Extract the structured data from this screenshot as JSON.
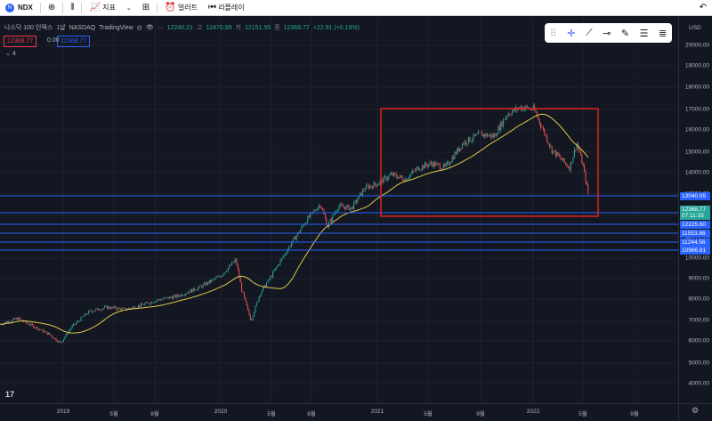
{
  "toolbar": {
    "symbol": "NDX",
    "indicators_label": "지표",
    "alert_label": "얼러트",
    "replay_label": "리플레이"
  },
  "legend": {
    "title": "나스닥 100 인덱스",
    "interval": "1날",
    "exchange": "NASDAQ",
    "source": "TradingView",
    "open_prefix": "",
    "open": "12240.21",
    "high_prefix": "고",
    "high": "12470.89",
    "low_prefix": "저",
    "low": "12151.55",
    "close_prefix": "종",
    "close": "12368.77",
    "change": "+22.91 (+0.19%)"
  },
  "price_boxes": {
    "sell": "12368.77",
    "spread": "0.00",
    "buy": "12368.77"
  },
  "indicator_collapse": "4",
  "price_axis": {
    "currency": "USD",
    "labels": [
      "20000.00",
      "19000.00",
      "18000.00",
      "17000.00",
      "16000.00",
      "15000.00",
      "14000.00",
      "13000.00",
      "12000.00",
      "11000.00",
      "10000.00",
      "9000.00",
      "8000.00",
      "7000.00",
      "6000.00",
      "5000.00",
      "4000.00"
    ],
    "tags": [
      {
        "text": "13040.05",
        "color": "#2962ff"
      },
      {
        "text": "12368.77",
        "color": "#26a69a"
      },
      {
        "text": "07:11:33",
        "color": "#26a69a"
      },
      {
        "text": "12225.60",
        "color": "#2962ff"
      },
      {
        "text": "11553.86",
        "color": "#2962ff"
      },
      {
        "text": "11244.56",
        "color": "#2962ff"
      },
      {
        "text": "10966.81",
        "color": "#2962ff"
      }
    ]
  },
  "time_axis": {
    "labels": [
      "2019",
      "5월",
      "8월",
      "2020",
      "5월",
      "8월",
      "2021",
      "5월",
      "9월",
      "2022",
      "5월",
      "9월"
    ]
  },
  "colors": {
    "background": "#131722",
    "up": "#26a69a",
    "down": "#ef5350",
    "ma": "#e0c84a",
    "hline": "#2962ff",
    "highlight_box": "#e02020"
  }
}
